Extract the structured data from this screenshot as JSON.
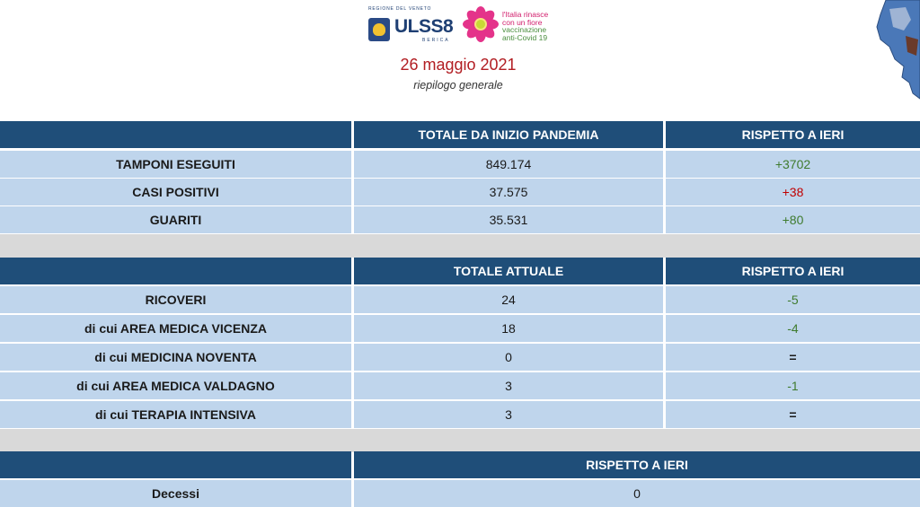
{
  "logos": {
    "region_label": "REGIONE DEL VENETO",
    "ulss_label": "ULSS8",
    "berica_label": "BERICA",
    "campaign_lines": [
      "l'Italia rinasce",
      "con un fiore",
      "vaccinazione",
      "anti-Covid 19"
    ]
  },
  "header": {
    "date": "26 maggio 2021",
    "subtitle": "riepilogo generale"
  },
  "colors": {
    "header_blue": "#1f4e79",
    "row_blue": "#bfd5ec",
    "separator_grey": "#d9d9d9",
    "date_red": "#b21e23",
    "positive_green": "#3f7b2e",
    "negative_red": "#c00000"
  },
  "table1": {
    "headers": [
      "",
      "TOTALE DA INIZIO PANDEMIA",
      "RISPETTO A IERI"
    ],
    "rows": [
      {
        "label": "TAMPONI ESEGUITI",
        "total": "849.174",
        "delta": "+3702"
      },
      {
        "label": "CASI POSITIVI",
        "total": "37.575",
        "delta": "+38"
      },
      {
        "label": "GUARITI",
        "total": "35.531",
        "delta": "+80"
      }
    ]
  },
  "table2": {
    "headers": [
      "",
      "TOTALE ATTUALE",
      "RISPETTO A IERI"
    ],
    "rows": [
      {
        "label": "RICOVERI",
        "total": "24",
        "delta": "-5"
      },
      {
        "label": "di cui AREA MEDICA VICENZA",
        "total": "18",
        "delta": "-4"
      },
      {
        "label": "di cui MEDICINA NOVENTA",
        "total": "0",
        "delta": "="
      },
      {
        "label": "di cui AREA MEDICA VALDAGNO",
        "total": "3",
        "delta": "-1"
      },
      {
        "label": "di cui TERAPIA INTENSIVA",
        "total": "3",
        "delta": "="
      }
    ]
  },
  "table3": {
    "header": "RISPETTO A IERI",
    "row": {
      "label": "Decessi",
      "delta": "0"
    }
  }
}
